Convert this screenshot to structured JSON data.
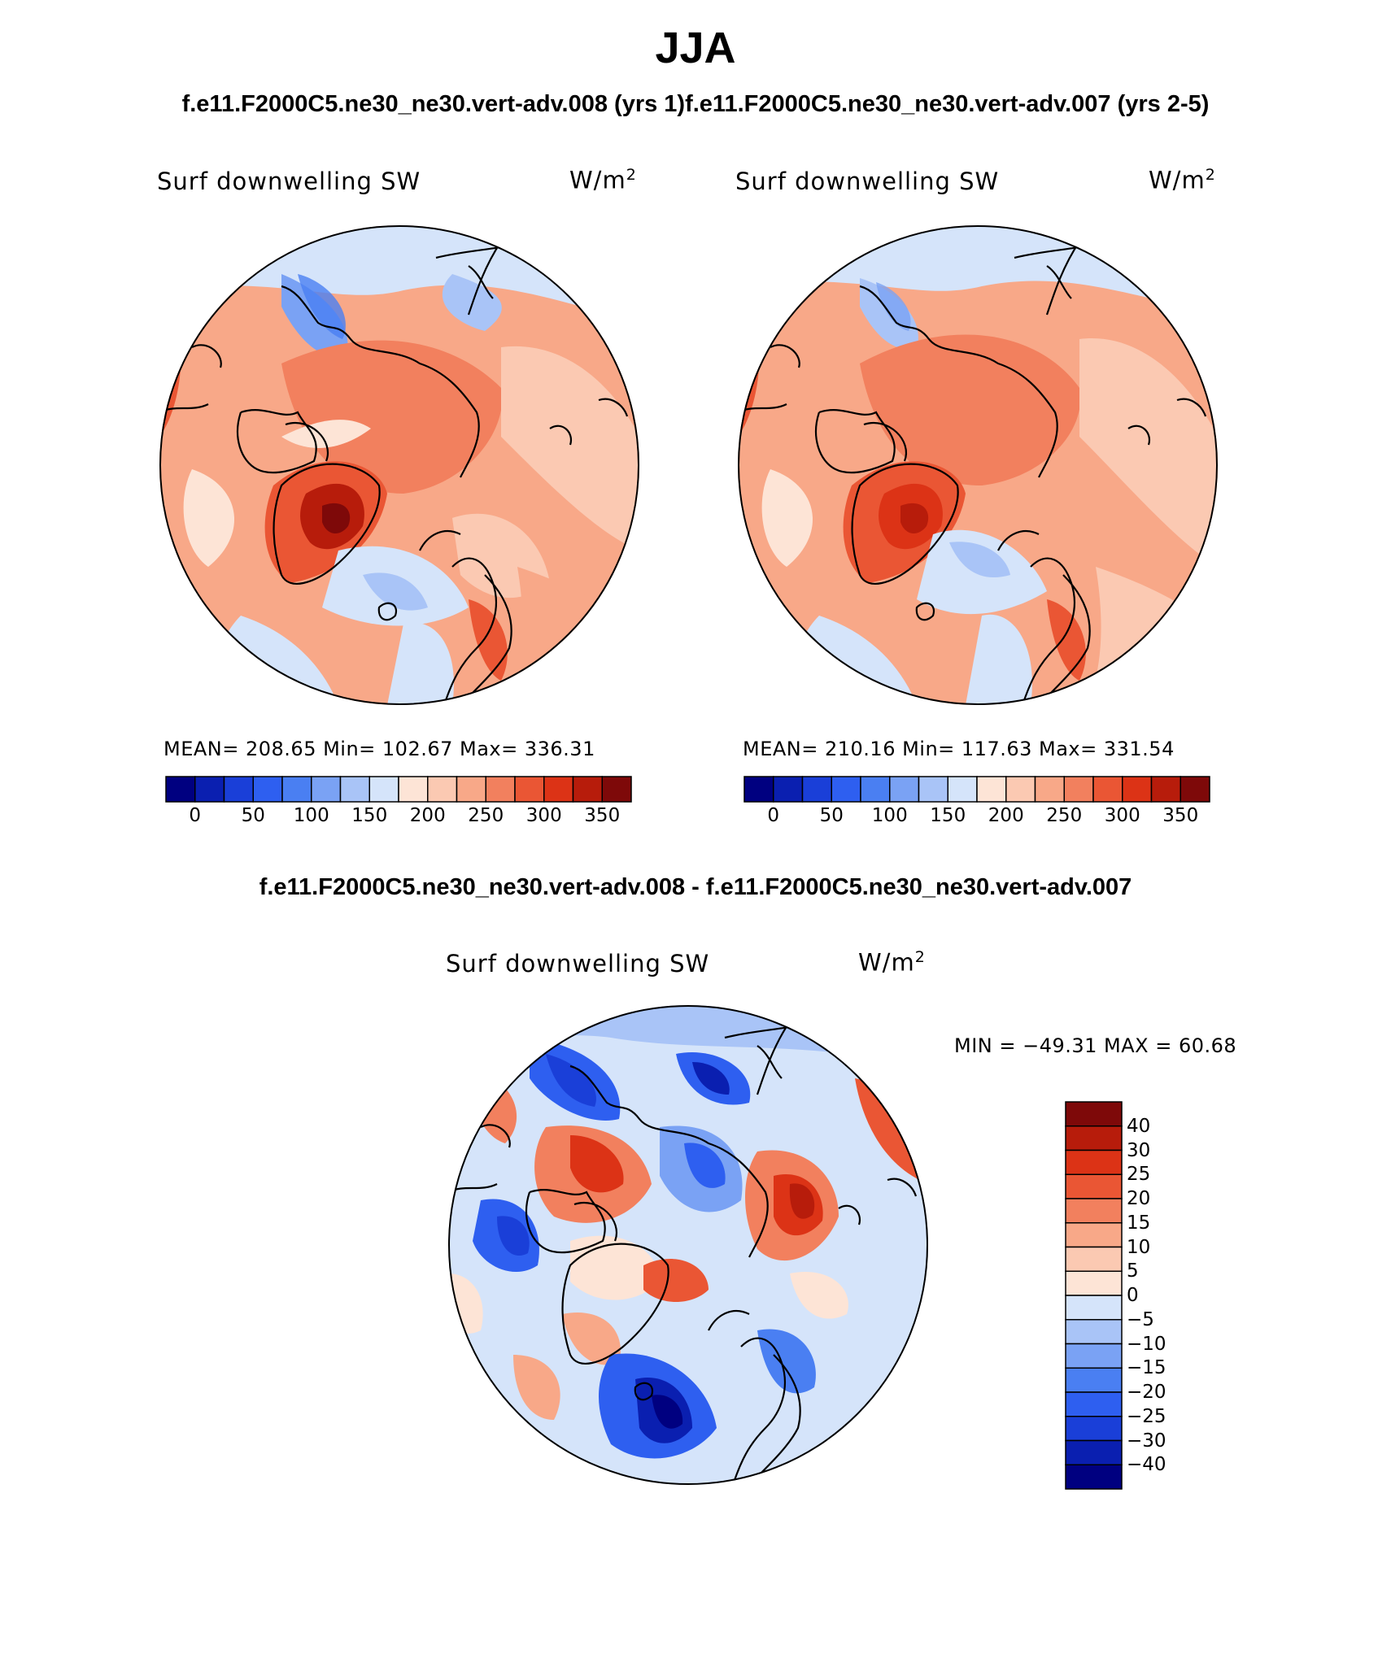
{
  "title": "JJA",
  "case_title_top": "f.e11.F2000C5.ne30_ne30.vert-adv.008 (yrs 1)f.e11.F2000C5.ne30_ne30.vert-adv.007 (yrs 2-5)",
  "case_title_diff": "f.e11.F2000C5.ne30_ne30.vert-adv.008 - f.e11.F2000C5.ne30_ne30.vert-adv.007",
  "panels": [
    {
      "variable": "Surf downwelling SW",
      "units_base": "W/m",
      "units_exp": "2",
      "stats": "MEAN= 208.65   Min= 102.67   Max= 336.31"
    },
    {
      "variable": "Surf downwelling SW",
      "units_base": "W/m",
      "units_exp": "2",
      "stats": "MEAN= 210.16   Min= 117.63   Max= 331.54"
    }
  ],
  "diff_panel": {
    "variable": "Surf downwelling SW",
    "units_base": "W/m",
    "units_exp": "2",
    "stats": "MIN = −49.31 MAX =   60.68"
  },
  "colorbar_top": {
    "colors": [
      "#000080",
      "#0a1fb0",
      "#1a3fd8",
      "#2e5ff0",
      "#4a7ff2",
      "#7aa2f4",
      "#a9c4f7",
      "#d5e4fa",
      "#fde4d6",
      "#fbc9b2",
      "#f8a888",
      "#f2805e",
      "#ea5634",
      "#dc3316",
      "#b71c0b",
      "#7e0909"
    ],
    "labels": [
      "0",
      "50",
      "100",
      "150",
      "200",
      "250",
      "300",
      "350"
    ]
  },
  "colorbar_diff": {
    "colors": [
      "#7e0909",
      "#b71c0b",
      "#dc3316",
      "#ea5634",
      "#f2805e",
      "#f8a888",
      "#fbc9b2",
      "#fde4d6",
      "#d5e4fa",
      "#a9c4f7",
      "#7aa2f4",
      "#4a7ff2",
      "#2e5ff0",
      "#1a3fd8",
      "#0a1fb0",
      "#000080"
    ],
    "labels": [
      "40",
      "30",
      "25",
      "20",
      "15",
      "10",
      "5",
      "0",
      "−5",
      "−10",
      "−15",
      "−20",
      "−25",
      "−30",
      "−40"
    ]
  }
}
